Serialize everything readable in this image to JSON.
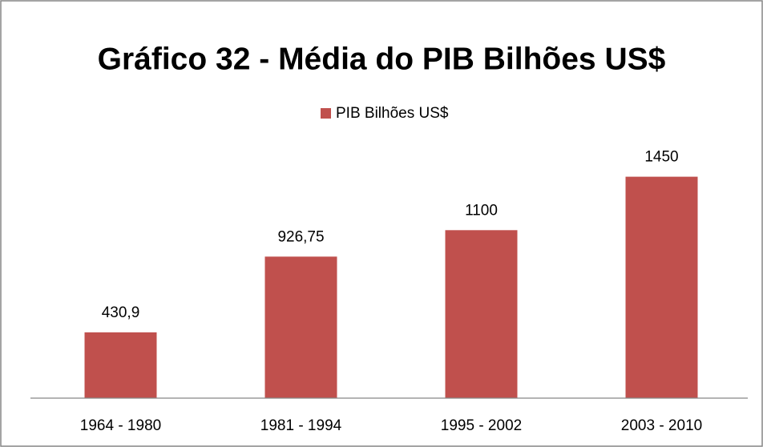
{
  "chart_data": {
    "type": "bar",
    "title": "Gráfico 32 - Média do PIB Bilhões US$",
    "categories": [
      "1964 - 1980",
      "1981 - 1994",
      "1995 - 2002",
      "2003 - 2010"
    ],
    "series": [
      {
        "name": "PIB Bilhões US$",
        "color": "#c0504d",
        "values": [
          430.9,
          926.75,
          1100,
          1450
        ],
        "value_labels": [
          "430,9",
          "926,75",
          "1100",
          "1450"
        ]
      }
    ],
    "ylim": [
      0,
      1600
    ],
    "legend": "top"
  }
}
